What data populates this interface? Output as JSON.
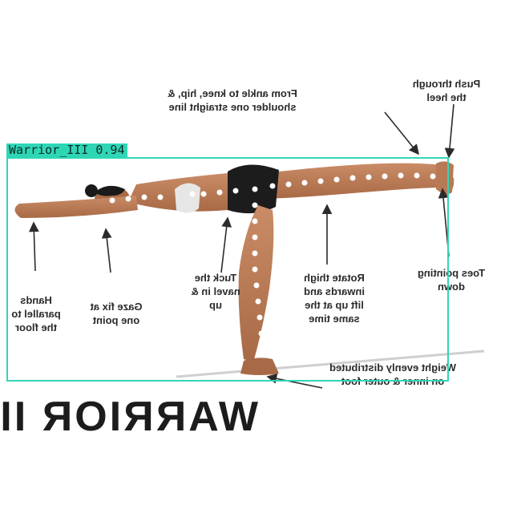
{
  "poster": {
    "title": "WARRIOR III",
    "annotations": {
      "alignment": "From ankle to knee, hip, &\nshoulder one straight line",
      "heel": "Push through\nthe heel",
      "toes": "Toes pointing\ndown",
      "thigh": "Rotate thigh\ninwards and\nlift up at the\nsame time",
      "navel": "Tuck the\nnavel in &\nup",
      "gaze": "Gaze fix at\none point",
      "hands": "Hands\nparallel to\nthe floor",
      "weight": "Weight evenly distributed\non inner & outer foot"
    }
  },
  "detection": {
    "label": "Warrior_III 0.94",
    "color": "#2fd6b6"
  }
}
